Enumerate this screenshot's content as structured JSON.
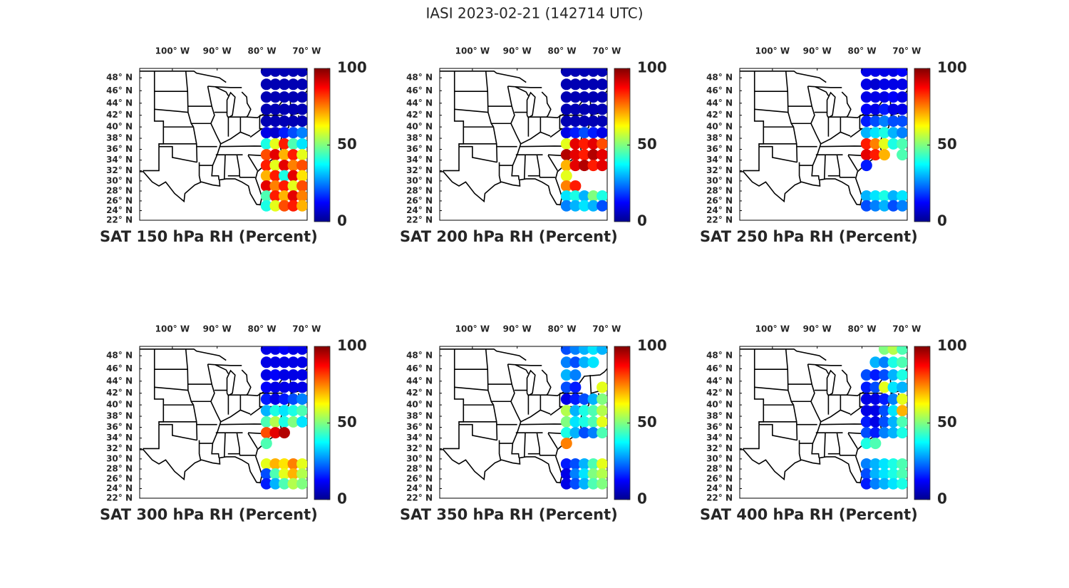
{
  "title": "IASI 2023-02-21 (142714 UTC)",
  "lon_lim": [
    -107.3,
    -69.9
  ],
  "lat_lim": [
    22,
    49.4
  ],
  "lon_ticks": [
    {
      "value": -100,
      "label": "100° W"
    },
    {
      "value": -90,
      "label": "90° W"
    },
    {
      "value": -80,
      "label": "80° W"
    },
    {
      "value": -70,
      "label": "70° W"
    }
  ],
  "lat_ticks": [
    {
      "value": 48,
      "label": "48° N"
    },
    {
      "value": 46,
      "label": "46° N"
    },
    {
      "value": 44,
      "label": "44° N"
    },
    {
      "value": 42,
      "label": "42° N"
    },
    {
      "value": 40,
      "label": "40° N"
    },
    {
      "value": 38,
      "label": "38° N"
    },
    {
      "value": 36,
      "label": "36° N"
    },
    {
      "value": 34,
      "label": "34° N"
    },
    {
      "value": 32,
      "label": "32° N"
    },
    {
      "value": 30,
      "label": "30° N"
    },
    {
      "value": 28,
      "label": "28° N"
    },
    {
      "value": 26,
      "label": "26° N"
    },
    {
      "value": 24,
      "label": "24° N"
    },
    {
      "value": 22,
      "label": "22° N"
    }
  ],
  "colorbar": {
    "lim": [
      0,
      100
    ],
    "ticks": [
      0,
      50,
      100
    ]
  },
  "grid": {
    "lon": [
      -79,
      -77,
      -75,
      -73,
      -71
    ],
    "lat": [
      49,
      47,
      45,
      43,
      41,
      39,
      37,
      35,
      33,
      31,
      29,
      27,
      25
    ]
  },
  "panels": [
    {
      "title": "SAT 150 hPa RH (Percent)",
      "rh": [
        [
          5,
          5,
          5,
          5,
          5
        ],
        [
          5,
          5,
          5,
          5,
          5
        ],
        [
          5,
          5,
          5,
          5,
          5
        ],
        [
          5,
          5,
          5,
          5,
          5
        ],
        [
          5,
          5,
          5,
          5,
          5
        ],
        [
          10,
          8,
          15,
          20,
          25
        ],
        [
          40,
          60,
          85,
          45,
          35
        ],
        [
          80,
          90,
          70,
          85,
          60
        ],
        [
          85,
          60,
          90,
          75,
          80
        ],
        [
          70,
          85,
          40,
          90,
          65
        ],
        [
          90,
          75,
          85,
          60,
          80
        ],
        [
          45,
          85,
          70,
          90,
          75
        ],
        [
          40,
          60,
          80,
          85,
          70
        ]
      ]
    },
    {
      "title": "SAT 200 hPa RH (Percent)",
      "rh": [
        [
          5,
          5,
          5,
          5,
          5
        ],
        [
          5,
          5,
          5,
          5,
          5
        ],
        [
          5,
          5,
          5,
          5,
          5
        ],
        [
          5,
          5,
          5,
          5,
          5
        ],
        [
          5,
          5,
          5,
          5,
          5
        ],
        [
          10,
          15,
          20,
          15,
          10
        ],
        [
          60,
          90,
          85,
          90,
          80
        ],
        [
          95,
          90,
          85,
          95,
          90
        ],
        [
          70,
          90,
          95,
          85,
          90
        ],
        [
          60,
          null,
          null,
          null,
          null
        ],
        [
          75,
          85,
          null,
          null,
          null
        ],
        [
          35,
          40,
          30,
          50,
          40
        ],
        [
          25,
          30,
          35,
          30,
          20
        ]
      ]
    },
    {
      "title": "SAT 250 hPa RH (Percent)",
      "rh": [
        [
          10,
          10,
          10,
          10,
          12
        ],
        [
          10,
          8,
          10,
          10,
          10
        ],
        [
          10,
          10,
          10,
          12,
          10
        ],
        [
          12,
          10,
          15,
          10,
          10
        ],
        [
          15,
          20,
          25,
          20,
          20
        ],
        [
          30,
          35,
          40,
          30,
          25
        ],
        [
          85,
          75,
          60,
          40,
          45
        ],
        [
          90,
          85,
          70,
          null,
          45
        ],
        [
          15,
          null,
          null,
          null,
          null
        ],
        [
          null,
          null,
          null,
          null,
          null
        ],
        [
          null,
          null,
          null,
          null,
          null
        ],
        [
          30,
          35,
          40,
          30,
          35
        ],
        [
          20,
          25,
          30,
          20,
          25
        ]
      ]
    },
    {
      "title": "SAT 300 hPa RH (Percent)",
      "rh": [
        [
          10,
          10,
          12,
          10,
          10
        ],
        [
          10,
          10,
          10,
          10,
          10
        ],
        [
          10,
          12,
          10,
          10,
          10
        ],
        [
          12,
          10,
          10,
          10,
          10
        ],
        [
          15,
          10,
          15,
          20,
          25
        ],
        [
          30,
          40,
          35,
          40,
          45
        ],
        [
          45,
          55,
          40,
          50,
          35
        ],
        [
          80,
          90,
          95,
          null,
          null
        ],
        [
          45,
          null,
          null,
          null,
          null
        ],
        [
          null,
          null,
          null,
          null,
          null
        ],
        [
          60,
          70,
          65,
          75,
          60
        ],
        [
          20,
          45,
          60,
          70,
          55
        ],
        [
          15,
          30,
          45,
          55,
          50
        ]
      ]
    },
    {
      "title": "SAT 350 hPa RH (Percent)",
      "rh": [
        [
          20,
          25,
          30,
          35,
          30
        ],
        [
          25,
          20,
          30,
          35,
          null
        ],
        [
          30,
          25,
          null,
          null,
          null
        ],
        [
          20,
          15,
          null,
          null,
          60
        ],
        [
          10,
          15,
          20,
          30,
          50
        ],
        [
          55,
          30,
          40,
          45,
          55
        ],
        [
          50,
          35,
          40,
          45,
          60
        ],
        [
          40,
          30,
          20,
          25,
          45
        ],
        [
          75,
          null,
          null,
          null,
          null
        ],
        [
          null,
          null,
          null,
          null,
          null
        ],
        [
          15,
          20,
          30,
          45,
          60
        ],
        [
          10,
          25,
          35,
          50,
          55
        ],
        [
          10,
          20,
          30,
          45,
          50
        ]
      ]
    },
    {
      "title": "SAT 400 hPa RH (Percent)",
      "rh": [
        [
          null,
          null,
          50,
          55,
          45
        ],
        [
          null,
          30,
          25,
          40,
          45
        ],
        [
          20,
          15,
          20,
          30,
          40
        ],
        [
          15,
          20,
          60,
          35,
          30
        ],
        [
          10,
          10,
          15,
          25,
          60
        ],
        [
          10,
          10,
          20,
          35,
          70
        ],
        [
          15,
          10,
          20,
          30,
          45
        ],
        [
          20,
          15,
          25,
          30,
          40
        ],
        [
          40,
          45,
          null,
          null,
          null
        ],
        [
          null,
          null,
          null,
          null,
          null
        ],
        [
          25,
          30,
          35,
          40,
          45
        ],
        [
          20,
          30,
          35,
          40,
          45
        ],
        [
          15,
          25,
          30,
          35,
          40
        ]
      ]
    }
  ]
}
